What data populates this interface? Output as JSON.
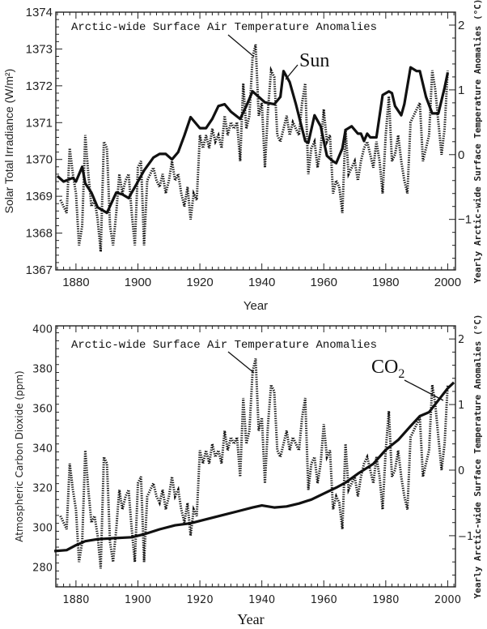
{
  "chart_data": [
    {
      "type": "line",
      "xlabel": "Year",
      "ylabel": "Solar Total Irradiance (W/m²)",
      "y2label": "Yearly Arctic-wide Surface Temperature Anomalies (°C)",
      "xlim": [
        1873.5,
        2002.5
      ],
      "ylim": [
        1367,
        1374
      ],
      "y2lim": [
        -1.78,
        2.2
      ],
      "xticks": [
        1880,
        1900,
        1920,
        1940,
        1960,
        1980,
        2000
      ],
      "yticks": [
        1367,
        1368,
        1369,
        1370,
        1371,
        1372,
        1373,
        1374
      ],
      "y2ticks": [
        -1,
        0,
        1,
        2
      ],
      "grid": false,
      "annotations": [
        "Arctic-wide Surface Air Temperature Anomalies",
        "Sun"
      ],
      "series": [
        {
          "name": "Sun",
          "axis": "left",
          "style": "solid",
          "x": [
            1874,
            1876,
            1879,
            1880,
            1882,
            1883,
            1885,
            1887,
            1890,
            1893,
            1895,
            1897,
            1900,
            1902,
            1905,
            1907,
            1909,
            1911,
            1913,
            1915,
            1917,
            1920,
            1922,
            1924,
            1926,
            1928,
            1930,
            1933,
            1935,
            1937,
            1939,
            1941,
            1944,
            1946,
            1947,
            1949,
            1951,
            1954,
            1955,
            1957,
            1959,
            1961,
            1963,
            1964,
            1966,
            1967,
            1969,
            1971,
            1972,
            1973,
            1974,
            1975,
            1977,
            1979,
            1981,
            1982,
            1983,
            1985,
            1986,
            1988,
            1990,
            1991,
            1993,
            1995,
            1997,
            1999,
            2000
          ],
          "y": [
            1369.55,
            1369.4,
            1369.5,
            1369.4,
            1369.8,
            1369.35,
            1369.1,
            1368.7,
            1368.55,
            1369.1,
            1369.05,
            1368.95,
            1369.4,
            1369.7,
            1370.05,
            1370.15,
            1370.15,
            1370.0,
            1370.2,
            1370.65,
            1371.15,
            1370.85,
            1370.85,
            1371.1,
            1371.45,
            1371.5,
            1371.3,
            1371.1,
            1371.45,
            1371.85,
            1371.7,
            1371.55,
            1371.5,
            1371.7,
            1372.4,
            1372.1,
            1371.5,
            1370.5,
            1370.45,
            1371.2,
            1370.9,
            1370.1,
            1369.95,
            1369.9,
            1370.3,
            1370.8,
            1370.9,
            1370.7,
            1370.7,
            1370.5,
            1370.7,
            1370.6,
            1370.6,
            1371.75,
            1371.85,
            1371.8,
            1371.45,
            1371.2,
            1371.5,
            1372.5,
            1372.4,
            1372.4,
            1371.7,
            1371.25,
            1371.25,
            1371.95,
            1372.35
          ]
        },
        {
          "name": "Arctic-wide Surface Air Temperature Anomalies",
          "axis": "right",
          "style": "dotted",
          "ref": "temperature"
        }
      ]
    },
    {
      "type": "line",
      "xlabel": "Year",
      "ylabel": "Atmospheric Carbon Dioxide (ppm)",
      "y2label": "Yearly Arctic-wide Surface Temperature Anomalies (°C)",
      "xlim": [
        1873.5,
        2002.5
      ],
      "ylim": [
        270,
        401.5
      ],
      "y2lim": [
        -1.78,
        2.2
      ],
      "xticks": [
        1880,
        1900,
        1920,
        1940,
        1960,
        1980,
        2000
      ],
      "yticks": [
        280,
        300,
        320,
        340,
        360,
        380,
        400
      ],
      "y2ticks": [
        -1,
        0,
        1,
        2
      ],
      "grid": false,
      "annotations": [
        "Arctic-wide Surface Air Temperature Anomalies",
        "CO",
        "2"
      ],
      "series": [
        {
          "name": "CO2",
          "axis": "left",
          "style": "solid",
          "x": [
            1873,
            1877,
            1880,
            1883,
            1887,
            1892,
            1898,
            1902,
            1907,
            1912,
            1917,
            1922,
            1927,
            1932,
            1937,
            1940,
            1944,
            1948,
            1952,
            1956,
            1960,
            1964,
            1967,
            1971,
            1976,
            1980,
            1984,
            1988,
            1991,
            1994,
            1997,
            2000,
            2002
          ],
          "y": [
            288,
            288.5,
            291,
            293,
            294,
            294.5,
            295,
            296.5,
            299,
            301,
            302,
            304,
            306,
            308,
            310,
            311,
            310,
            310.5,
            312,
            314,
            317,
            320,
            322.5,
            327,
            332,
            339,
            344,
            351,
            356,
            358,
            364,
            370,
            373
          ]
        },
        {
          "name": "Arctic-wide Surface Air Temperature Anomalies",
          "axis": "right",
          "style": "dotted",
          "ref": "temperature"
        }
      ]
    }
  ],
  "temperature": {
    "x_start": 1875,
    "y": [
      -0.7,
      -0.8,
      -0.9,
      0.1,
      -0.3,
      -0.6,
      -1.4,
      -1.1,
      0.3,
      -0.3,
      -0.8,
      -0.7,
      -1.0,
      -1.5,
      0.2,
      0.1,
      -1.1,
      -1.4,
      -0.9,
      -0.3,
      -0.6,
      -0.4,
      -0.3,
      -0.9,
      -1.4,
      -0.2,
      -0.1,
      -1.4,
      -0.4,
      -0.3,
      -0.2,
      -0.4,
      -0.5,
      -0.3,
      -0.6,
      -0.4,
      -0.1,
      -0.4,
      -0.3,
      -0.6,
      -0.8,
      -0.5,
      -1.0,
      -0.6,
      -0.7,
      0.3,
      0.1,
      0.3,
      0.1,
      0.4,
      0.2,
      0.3,
      0.1,
      0.6,
      0.3,
      0.5,
      0.4,
      0.5,
      -0.1,
      1.1,
      0.4,
      0.6,
      1.5,
      1.7,
      0.6,
      0.8,
      -0.2,
      0.7,
      1.3,
      1.2,
      0.3,
      0.2,
      0.4,
      0.6,
      0.3,
      0.5,
      0.4,
      0.3,
      0.8,
      1.1,
      -0.3,
      0.1,
      0.2,
      -0.2,
      0.1,
      0.7,
      0.2,
      0.3,
      -0.6,
      -0.4,
      -0.5,
      -0.9,
      0.4,
      -0.3,
      -0.2,
      -0.1,
      -0.4,
      -0.1,
      0.1,
      0.2,
      0.0,
      -0.2,
      0.2,
      -0.1,
      -0.6,
      0.3,
      0.9,
      -0.1,
      0.0,
      0.3,
      -0.1,
      -0.4,
      -0.6,
      0.5,
      0.6,
      0.7,
      0.8,
      -0.1,
      0.1,
      0.3,
      1.3,
      1.0,
      0.5,
      0.0,
      0.4,
      1.3
    ]
  },
  "labels": {
    "top_ylabel": "Solar Total Irradiance (W/m²)",
    "bottom_ylabel": "Atmospheric Carbon Dioxide (ppm)",
    "right_ylabel": "Yearly Arctic-wide Surface Temperature Anomalies (°C)",
    "xlabel": "Year",
    "temp_annotation": "Arctic-wide Surface Air Temperature Anomalies",
    "sun_annotation": "Sun",
    "co2_annotation": "CO",
    "co2_subscript": "2"
  },
  "colors": {
    "line": "#111111",
    "axis": "#222222",
    "background": "#ffffff"
  }
}
